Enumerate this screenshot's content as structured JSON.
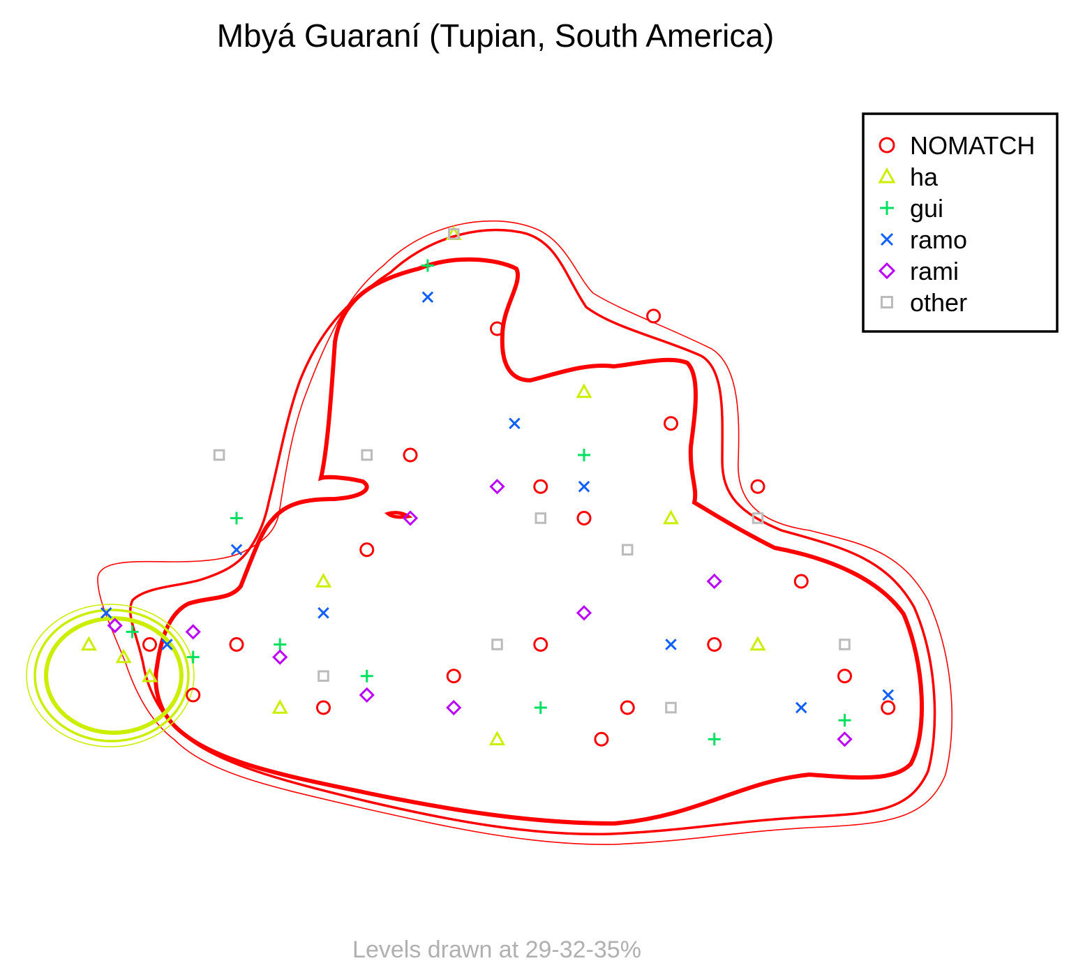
{
  "chart_data": {
    "type": "scatter",
    "title": "Mbyá Guaraní (Tupian, South America)",
    "caption": "Levels drawn at 29-32-35%",
    "xlabel": "",
    "ylabel": "",
    "axes_visible": false,
    "grid": false,
    "legend_position": "top-right",
    "contour_levels": [
      "29%",
      "32%",
      "35%"
    ],
    "series": [
      {
        "name": "NOMATCH",
        "marker": "circle",
        "color": "#ff0000",
        "points": [
          [
            0.55,
            0.55
          ],
          [
            0.6,
            0.5
          ],
          [
            0.5,
            0.8
          ],
          [
            0.7,
            0.65
          ],
          [
            0.75,
            0.3
          ],
          [
            0.85,
            0.4
          ],
          [
            0.2,
            0.3
          ],
          [
            0.35,
            0.45
          ],
          [
            0.45,
            0.25
          ],
          [
            0.65,
            0.2
          ],
          [
            0.9,
            0.25
          ],
          [
            0.3,
            0.2
          ],
          [
            0.4,
            0.6
          ],
          [
            0.68,
            0.82
          ],
          [
            0.8,
            0.55
          ],
          [
            0.15,
            0.22
          ],
          [
            0.1,
            0.3
          ],
          [
            0.55,
            0.3
          ],
          [
            0.62,
            0.15
          ],
          [
            0.95,
            0.2
          ]
        ]
      },
      {
        "name": "ha",
        "marker": "triangle",
        "color": "#ccee00",
        "points": [
          [
            0.03,
            0.3
          ],
          [
            0.07,
            0.28
          ],
          [
            0.1,
            0.25
          ],
          [
            0.45,
            0.95
          ],
          [
            0.6,
            0.7
          ],
          [
            0.3,
            0.4
          ],
          [
            0.25,
            0.2
          ],
          [
            0.5,
            0.15
          ],
          [
            0.8,
            0.3
          ],
          [
            0.7,
            0.5
          ]
        ]
      },
      {
        "name": "gui",
        "marker": "plus",
        "color": "#00e060",
        "points": [
          [
            0.08,
            0.32
          ],
          [
            0.15,
            0.28
          ],
          [
            0.2,
            0.5
          ],
          [
            0.42,
            0.9
          ],
          [
            0.6,
            0.6
          ],
          [
            0.35,
            0.25
          ],
          [
            0.55,
            0.2
          ],
          [
            0.75,
            0.15
          ],
          [
            0.9,
            0.18
          ],
          [
            0.25,
            0.3
          ]
        ]
      },
      {
        "name": "ramo",
        "marker": "x",
        "color": "#1060ff",
        "points": [
          [
            0.05,
            0.35
          ],
          [
            0.12,
            0.3
          ],
          [
            0.2,
            0.45
          ],
          [
            0.42,
            0.85
          ],
          [
            0.52,
            0.65
          ],
          [
            0.6,
            0.55
          ],
          [
            0.7,
            0.3
          ],
          [
            0.85,
            0.2
          ],
          [
            0.95,
            0.22
          ],
          [
            0.3,
            0.35
          ]
        ]
      },
      {
        "name": "rami",
        "marker": "diamond",
        "color": "#bb00ff",
        "points": [
          [
            0.06,
            0.33
          ],
          [
            0.15,
            0.32
          ],
          [
            0.25,
            0.28
          ],
          [
            0.35,
            0.22
          ],
          [
            0.45,
            0.2
          ],
          [
            0.6,
            0.35
          ],
          [
            0.75,
            0.4
          ],
          [
            0.9,
            0.15
          ],
          [
            0.4,
            0.5
          ],
          [
            0.5,
            0.55
          ]
        ]
      },
      {
        "name": "other",
        "marker": "square",
        "color": "#bbbbbb",
        "points": [
          [
            0.18,
            0.6
          ],
          [
            0.35,
            0.6
          ],
          [
            0.45,
            0.95
          ],
          [
            0.55,
            0.5
          ],
          [
            0.65,
            0.45
          ],
          [
            0.8,
            0.5
          ],
          [
            0.9,
            0.3
          ],
          [
            0.3,
            0.25
          ],
          [
            0.5,
            0.3
          ],
          [
            0.7,
            0.2
          ]
        ]
      }
    ],
    "hot_spots": [
      {
        "series": "NOMATCH",
        "color": "#ff0000",
        "levels": 3
      },
      {
        "series": "ha",
        "color": "#ccee00",
        "levels": 3
      }
    ]
  }
}
